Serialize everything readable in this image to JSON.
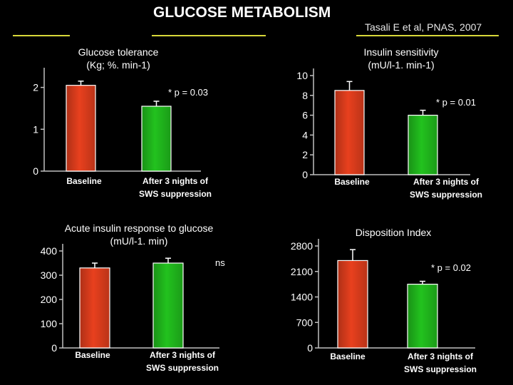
{
  "header": {
    "title": "GLUCOSE METABOLISM",
    "citation": "Tasali E et al, PNAS, 2007"
  },
  "colors": {
    "background": "#000000",
    "baseline_bar": "#e8401e",
    "suppression_bar": "#22c21e",
    "rule": "#d8d83a"
  },
  "chart_data": [
    {
      "type": "bar",
      "title": "Glucose tolerance\n(Kg; %. min-1)",
      "categories": [
        "Baseline",
        "After 3 nights of\nSWS suppression"
      ],
      "values": [
        2.05,
        1.55
      ],
      "errors": [
        0.1,
        0.12
      ],
      "ylim": [
        0,
        2.3
      ],
      "yticks": [
        "0",
        "1",
        "2"
      ],
      "annotation": "* p = 0.03"
    },
    {
      "type": "bar",
      "title": "Insulin sensitivity\n(mU/l-1. min-1)",
      "categories": [
        "Baseline",
        "After 3 nights of\nSWS suppression"
      ],
      "values": [
        8.5,
        6.0
      ],
      "errors": [
        0.9,
        0.5
      ],
      "ylim": [
        0,
        10
      ],
      "yticks": [
        "0",
        "2",
        "4",
        "6",
        "8",
        "10"
      ],
      "annotation": "* p = 0.01"
    },
    {
      "type": "bar",
      "title": "Acute insulin response to glucose\n(mU/l-1. min)",
      "categories": [
        "Baseline",
        "After 3 nights of\nSWS suppression"
      ],
      "values": [
        330,
        350
      ],
      "errors": [
        20,
        20
      ],
      "ylim": [
        0,
        400
      ],
      "yticks": [
        "0",
        "100",
        "200",
        "300",
        "400"
      ],
      "annotation": "ns"
    },
    {
      "type": "bar",
      "title": "Disposition Index",
      "categories": [
        "Baseline",
        "After 3 nights of\nSWS suppression"
      ],
      "values": [
        2400,
        1750
      ],
      "errors": [
        300,
        80
      ],
      "ylim": [
        0,
        2800
      ],
      "yticks": [
        "0",
        "700",
        "1400",
        "2100",
        "2800"
      ],
      "annotation": "* p = 0.02"
    }
  ]
}
